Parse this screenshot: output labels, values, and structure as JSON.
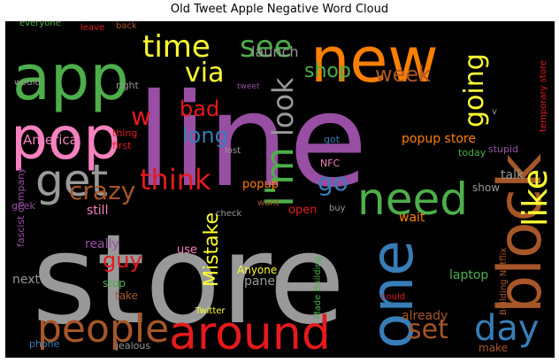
{
  "chart_data": {
    "type": "wordcloud",
    "title": "Old Tweet Apple Negative Word Cloud",
    "background": "#000000",
    "words": [
      {
        "text": "store",
        "weight": 100,
        "color": "#999999"
      },
      {
        "text": "line",
        "weight": 80,
        "color": "#984ea3"
      },
      {
        "text": "new",
        "weight": 48,
        "color": "#ff7f00"
      },
      {
        "text": "app",
        "weight": 48,
        "color": "#4daf4a"
      },
      {
        "text": "pop",
        "weight": 44,
        "color": "#f781bf"
      },
      {
        "text": "block",
        "weight": 44,
        "color": "#a65628"
      },
      {
        "text": "one",
        "weight": 42,
        "color": "#377eb8"
      },
      {
        "text": "around",
        "weight": 36,
        "color": "#e41a1c"
      },
      {
        "text": "get",
        "weight": 34,
        "color": "#999999"
      },
      {
        "text": "need",
        "weight": 34,
        "color": "#4daf4a"
      },
      {
        "text": "people",
        "weight": 30,
        "color": "#a65628"
      },
      {
        "text": "I'm",
        "weight": 28,
        "color": "#4daf4a"
      },
      {
        "text": "day",
        "weight": 28,
        "color": "#377eb8"
      },
      {
        "text": "like",
        "weight": 28,
        "color": "#ffff33"
      },
      {
        "text": "time",
        "weight": 24,
        "color": "#ffff33"
      },
      {
        "text": "see",
        "weight": 24,
        "color": "#4daf4a"
      },
      {
        "text": "look",
        "weight": 22,
        "color": "#999999"
      },
      {
        "text": "think",
        "weight": 22,
        "color": "#e41a1c"
      },
      {
        "text": "going",
        "weight": 22,
        "color": "#ffff33"
      },
      {
        "text": "set",
        "weight": 22,
        "color": "#a65628"
      },
      {
        "text": "via",
        "weight": 20,
        "color": "#ffff33"
      },
      {
        "text": "crazy",
        "weight": 20,
        "color": "#a65628"
      },
      {
        "text": "go",
        "weight": 20,
        "color": "#377eb8"
      },
      {
        "text": "w",
        "weight": 20,
        "color": "#e41a1c"
      },
      {
        "text": "week",
        "weight": 16,
        "color": "#a65628"
      },
      {
        "text": "long",
        "weight": 16,
        "color": "#377eb8"
      },
      {
        "text": "bad",
        "weight": 16,
        "color": "#e41a1c"
      },
      {
        "text": "shop",
        "weight": 16,
        "color": "#4daf4a"
      },
      {
        "text": "guy",
        "weight": 16,
        "color": "#e41a1c"
      },
      {
        "text": "Mistake",
        "weight": 16,
        "color": "#ffff33"
      },
      {
        "text": "launch",
        "weight": 13,
        "color": "#999999"
      },
      {
        "text": "America",
        "weight": 13,
        "color": "#f781bf"
      },
      {
        "text": "popup store",
        "weight": 11,
        "color": "#ff7f00"
      },
      {
        "text": "already",
        "weight": 11,
        "color": "#a65628"
      },
      {
        "text": "laptop",
        "weight": 11,
        "color": "#4daf4a"
      },
      {
        "text": "still",
        "weight": 11,
        "color": "#f781bf"
      },
      {
        "text": "really",
        "weight": 11,
        "color": "#984ea3"
      },
      {
        "text": "next",
        "weight": 11,
        "color": "#999999"
      },
      {
        "text": "panel",
        "weight": 11,
        "color": "#999999"
      },
      {
        "text": "wait",
        "weight": 11,
        "color": "#ff7f00"
      },
      {
        "text": "talk",
        "weight": 10,
        "color": "#999999"
      },
      {
        "text": "open",
        "weight": 10,
        "color": "#e41a1c"
      },
      {
        "text": "popup",
        "weight": 10,
        "color": "#ff7f00"
      },
      {
        "text": "use",
        "weight": 10,
        "color": "#f781bf"
      },
      {
        "text": "Anyone",
        "weight": 10,
        "color": "#ffff33"
      },
      {
        "text": "stop",
        "weight": 9,
        "color": "#4daf4a"
      },
      {
        "text": "take",
        "weight": 9,
        "color": "#a65628"
      },
      {
        "text": "show",
        "weight": 9,
        "color": "#999999"
      },
      {
        "text": "make",
        "weight": 9,
        "color": "#a65628"
      },
      {
        "text": "fascist company",
        "weight": 8,
        "color": "#984ea3"
      },
      {
        "text": "geek",
        "weight": 8,
        "color": "#984ea3"
      },
      {
        "text": "would",
        "weight": 8,
        "color": "#999999"
      },
      {
        "text": "right",
        "weight": 8,
        "color": "#999999"
      },
      {
        "text": "first",
        "weight": 8,
        "color": "#e41a1c"
      },
      {
        "text": "thing",
        "weight": 8,
        "color": "#e41a1c"
      },
      {
        "text": "got",
        "weight": 8,
        "color": "#377eb8"
      },
      {
        "text": "NFC",
        "weight": 8,
        "color": "#f781bf"
      },
      {
        "text": "today",
        "weight": 8,
        "color": "#4daf4a"
      },
      {
        "text": "stupid",
        "weight": 8,
        "color": "#984ea3"
      },
      {
        "text": "buy",
        "weight": 8,
        "color": "#999999"
      },
      {
        "text": "check",
        "weight": 8,
        "color": "#999999"
      },
      {
        "text": "want",
        "weight": 8,
        "color": "#a65628"
      },
      {
        "text": "lost",
        "weight": 8,
        "color": "#999999"
      },
      {
        "text": "tweet",
        "weight": 7,
        "color": "#984ea3"
      },
      {
        "text": "everyone",
        "weight": 7,
        "color": "#4daf4a"
      },
      {
        "text": "leave",
        "weight": 7,
        "color": "#e41a1c"
      },
      {
        "text": "back",
        "weight": 7,
        "color": "#a65628"
      },
      {
        "text": "v",
        "weight": 7,
        "color": "#999999"
      },
      {
        "text": "Building Netflix",
        "weight": 7,
        "color": "#a65628"
      },
      {
        "text": "Made Building",
        "weight": 7,
        "color": "#4daf4a"
      },
      {
        "text": "temporary store",
        "weight": 7,
        "color": "#e41a1c"
      },
      {
        "text": "Twitter",
        "weight": 7,
        "color": "#ffff33"
      },
      {
        "text": "could",
        "weight": 7,
        "color": "#e41a1c"
      },
      {
        "text": "jealous",
        "weight": 7,
        "color": "#999999"
      },
      {
        "text": "phone",
        "weight": 7,
        "color": "#377eb8"
      }
    ]
  }
}
